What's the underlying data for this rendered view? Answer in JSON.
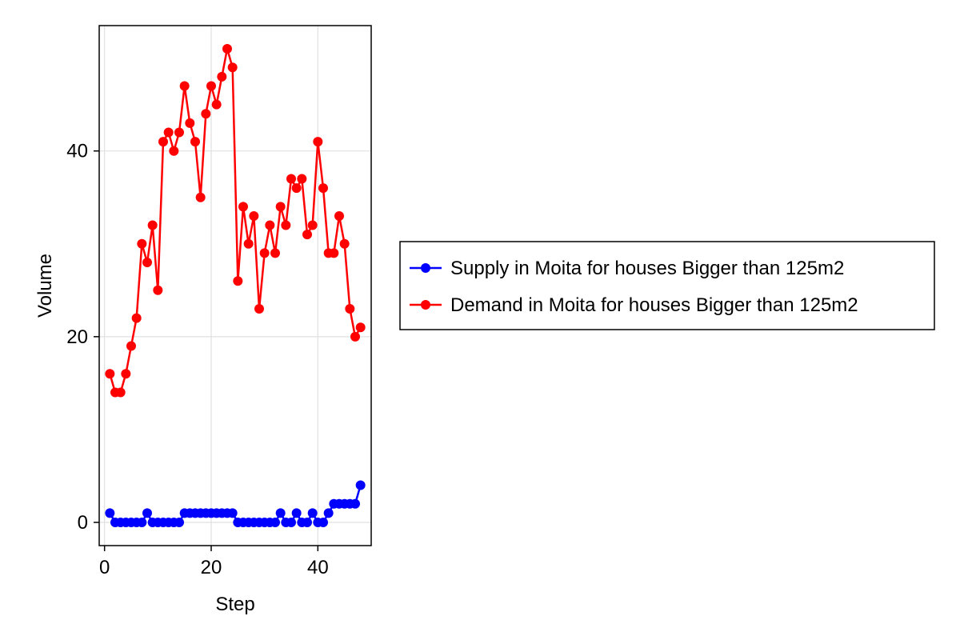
{
  "chart_data": {
    "type": "line",
    "xlabel": "Step",
    "ylabel": "Volume",
    "xlim": [
      -1,
      50
    ],
    "ylim": [
      -2.5,
      53.5
    ],
    "xticks": [
      0,
      20,
      40
    ],
    "yticks": [
      0,
      20,
      40
    ],
    "grid": true,
    "legend_position": "right",
    "x": [
      1,
      2,
      3,
      4,
      5,
      6,
      7,
      8,
      9,
      10,
      11,
      12,
      13,
      14,
      15,
      16,
      17,
      18,
      19,
      20,
      21,
      22,
      23,
      24,
      25,
      26,
      27,
      28,
      29,
      30,
      31,
      32,
      33,
      34,
      35,
      36,
      37,
      38,
      39,
      40,
      41,
      42,
      43,
      44,
      45,
      46,
      47,
      48
    ],
    "series": [
      {
        "name": "Supply in Moita for houses Bigger than 125m2",
        "color": "#0000ff",
        "values": [
          1,
          0,
          0,
          0,
          0,
          0,
          0,
          1,
          0,
          0,
          0,
          0,
          0,
          0,
          1,
          1,
          1,
          1,
          1,
          1,
          1,
          1,
          1,
          1,
          0,
          0,
          0,
          0,
          0,
          0,
          0,
          0,
          1,
          0,
          0,
          1,
          0,
          0,
          1,
          0,
          0,
          1,
          2,
          2,
          2,
          2,
          2,
          4
        ]
      },
      {
        "name": "Demand in Moita for houses Bigger than 125m2",
        "color": "#ff0000",
        "values": [
          16,
          14,
          14,
          16,
          19,
          22,
          30,
          28,
          32,
          25,
          41,
          42,
          40,
          42,
          47,
          43,
          41,
          35,
          44,
          47,
          45,
          48,
          51,
          49,
          26,
          34,
          30,
          33,
          23,
          29,
          32,
          29,
          34,
          32,
          37,
          36,
          37,
          31,
          32,
          41,
          36,
          29,
          29,
          33,
          30,
          23,
          20,
          21
        ]
      }
    ]
  }
}
